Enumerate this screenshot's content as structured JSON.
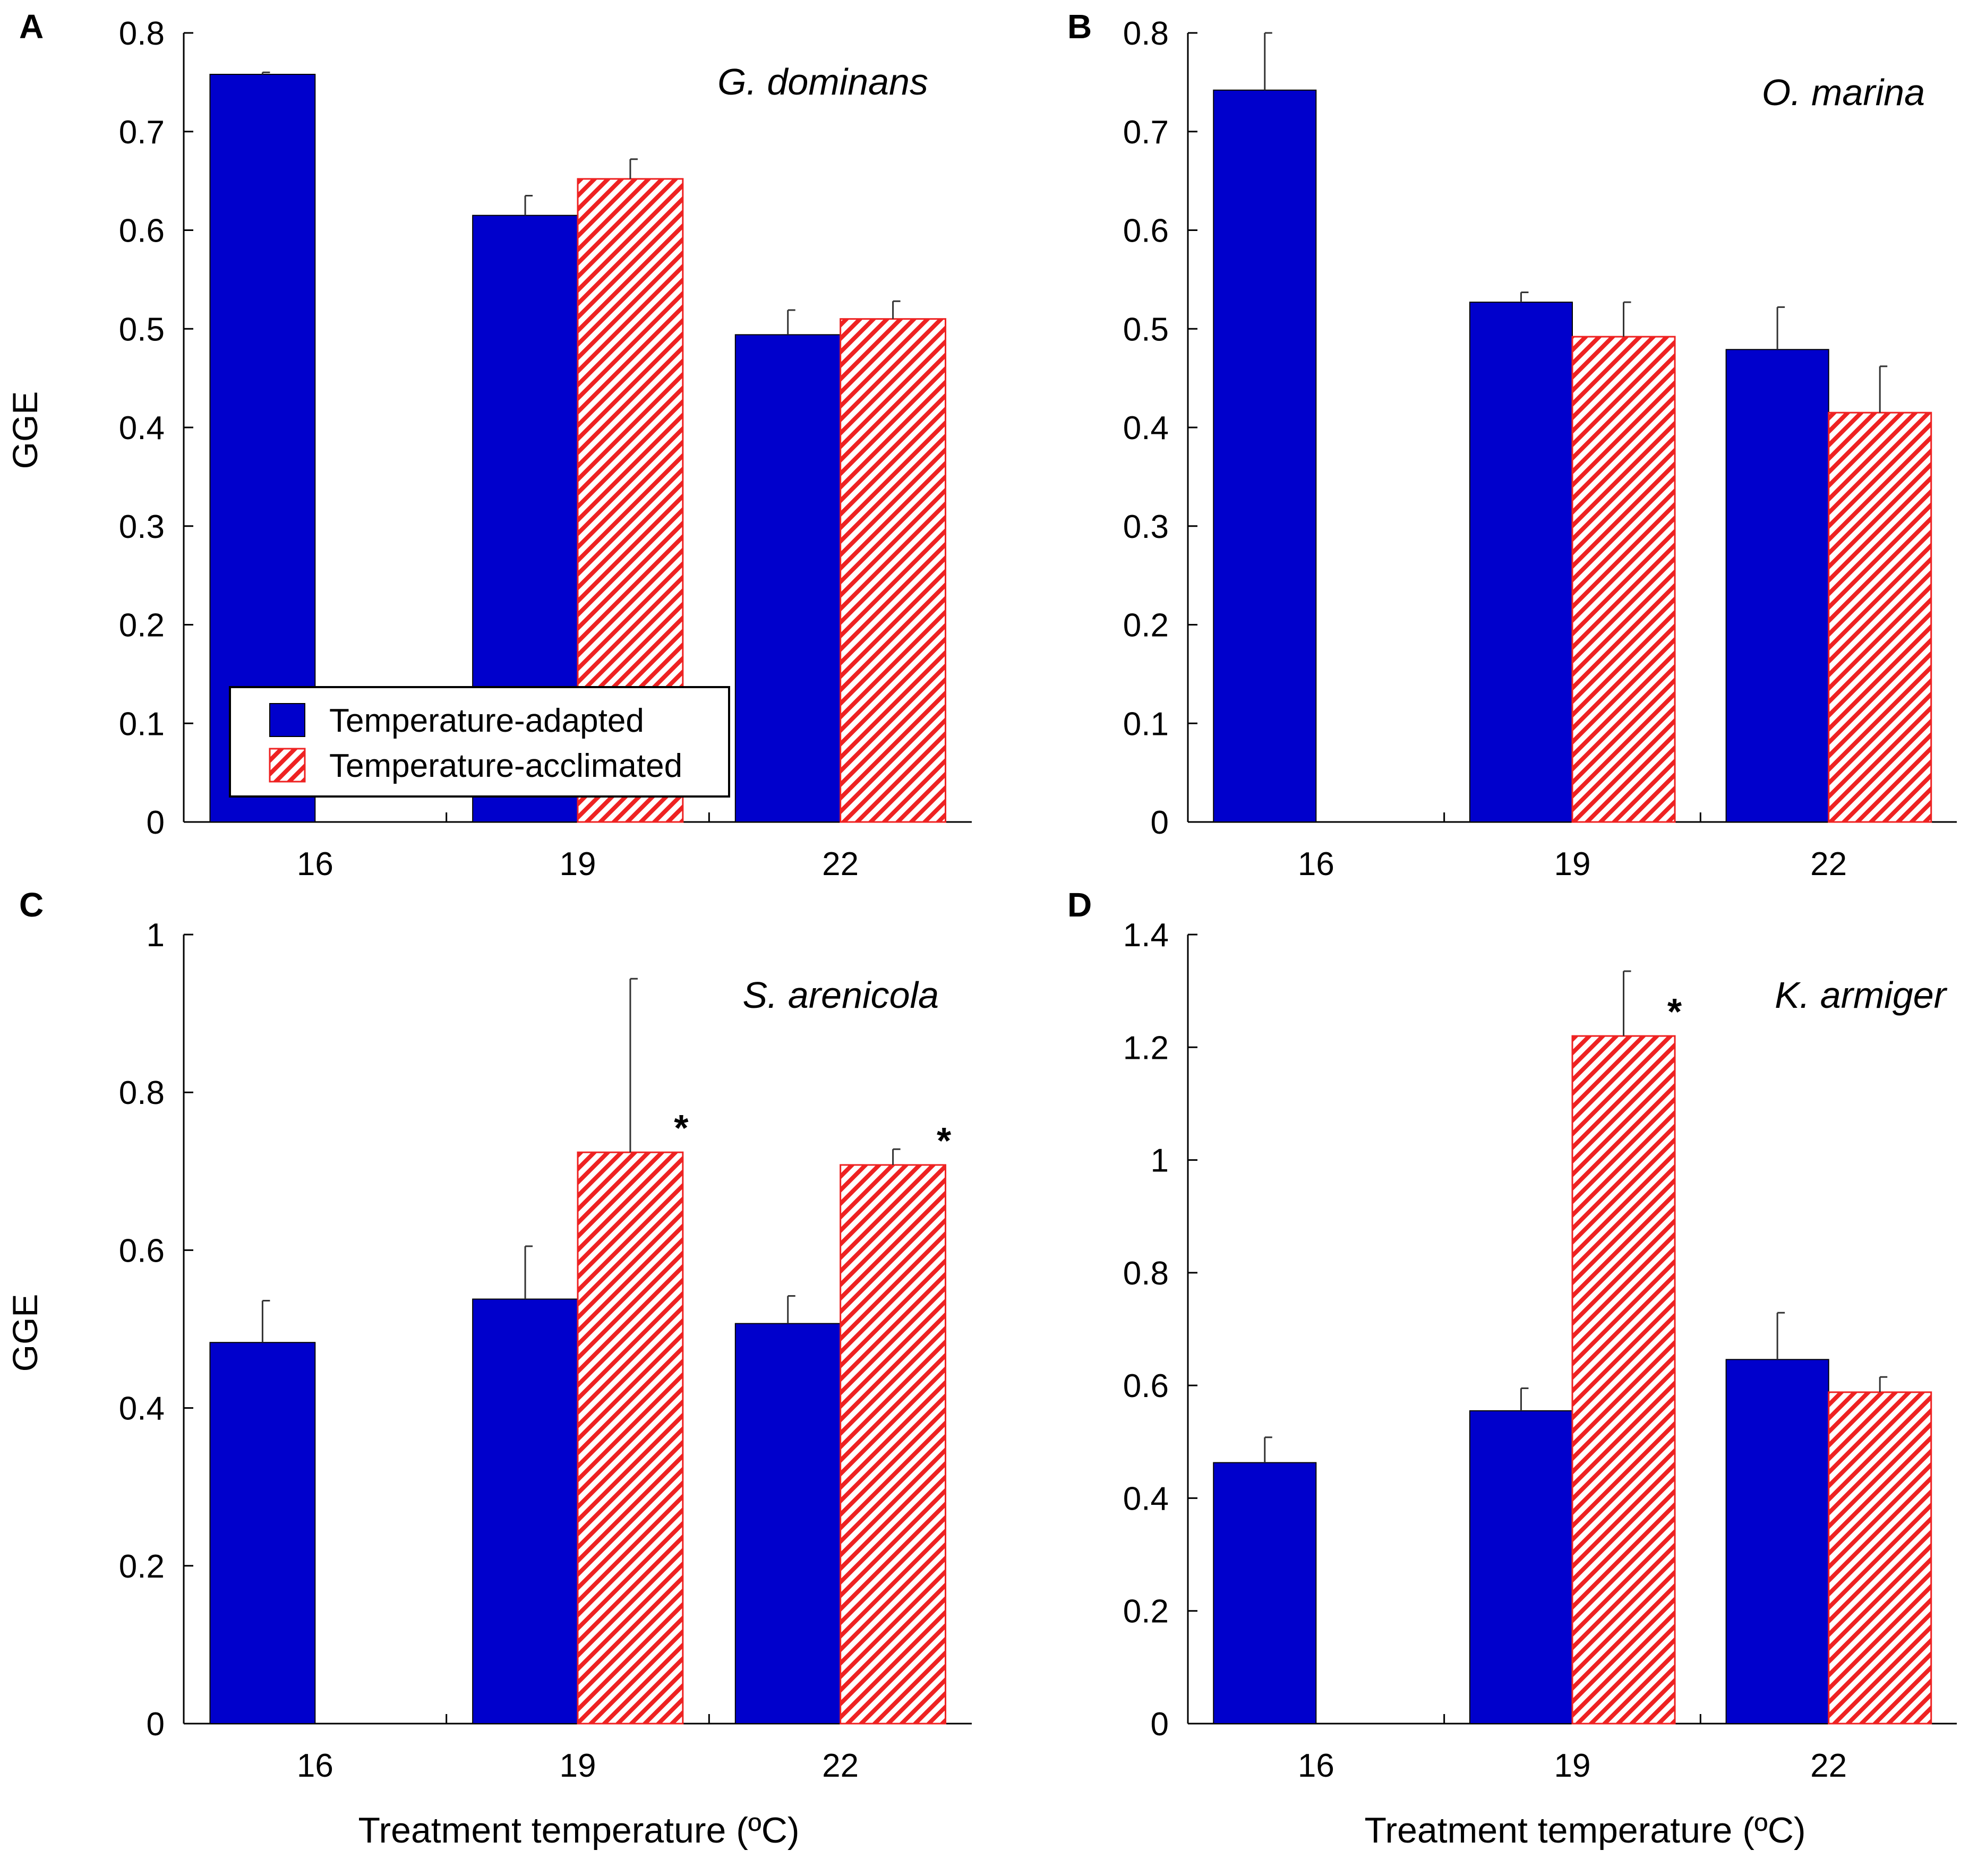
{
  "colors": {
    "adapted": "#0000cc",
    "acclimated_stripe": "#ee2222",
    "axis": "#000000"
  },
  "chart_data": [
    {
      "type": "bar",
      "panel": "A",
      "species": "G. dominans",
      "xlabel": "",
      "ylabel": "GGE",
      "categories": [
        "16",
        "19",
        "22"
      ],
      "ylim": [
        0,
        0.8
      ],
      "yticks": [
        0,
        0.1,
        0.2,
        0.3,
        0.4,
        0.5,
        0.6,
        0.7,
        0.8
      ],
      "ytick_labels": [
        "0",
        "0.1",
        "0.2",
        "0.3",
        "0.4",
        "0.5",
        "0.6",
        "0.7",
        "0.8"
      ],
      "series": [
        {
          "name": "Temperature-adapted",
          "values": [
            0.758,
            0.615,
            0.494
          ],
          "errors": [
            0.002,
            0.02,
            0.025
          ]
        },
        {
          "name": "Temperature-acclimated",
          "values": [
            null,
            0.652,
            0.51
          ],
          "errors": [
            null,
            0.02,
            0.018
          ]
        }
      ],
      "significance": [],
      "legend": {
        "position": "bottom-left",
        "entries": [
          "Temperature-adapted",
          "Temperature-acclimated"
        ]
      }
    },
    {
      "type": "bar",
      "panel": "B",
      "species": "O. marina",
      "xlabel": "",
      "ylabel": "",
      "categories": [
        "16",
        "19",
        "22"
      ],
      "ylim": [
        0,
        0.8
      ],
      "yticks": [
        0,
        0.1,
        0.2,
        0.3,
        0.4,
        0.5,
        0.6,
        0.7,
        0.8
      ],
      "ytick_labels": [
        "0",
        "0.1",
        "0.2",
        "0.3",
        "0.4",
        "0.5",
        "0.6",
        "0.7",
        "0.8"
      ],
      "series": [
        {
          "name": "Temperature-adapted",
          "values": [
            0.742,
            0.527,
            0.479
          ],
          "errors": [
            0.058,
            0.01,
            0.043
          ]
        },
        {
          "name": "Temperature-acclimated",
          "values": [
            null,
            0.492,
            0.415
          ],
          "errors": [
            null,
            0.035,
            0.047
          ]
        }
      ],
      "significance": []
    },
    {
      "type": "bar",
      "panel": "C",
      "species": "S. arenicola",
      "xlabel": "Treatment temperature (ºC)",
      "ylabel": "GGE",
      "categories": [
        "16",
        "19",
        "22"
      ],
      "ylim": [
        0,
        1
      ],
      "yticks": [
        0,
        0.2,
        0.4,
        0.6,
        0.8,
        1
      ],
      "ytick_labels": [
        "0",
        "0.2",
        "0.4",
        "0.6",
        "0.8",
        "1"
      ],
      "series": [
        {
          "name": "Temperature-adapted",
          "values": [
            0.483,
            0.538,
            0.507
          ],
          "errors": [
            0.053,
            0.067,
            0.035
          ]
        },
        {
          "name": "Temperature-acclimated",
          "values": [
            null,
            0.724,
            0.708
          ],
          "errors": [
            null,
            0.22,
            0.02
          ]
        }
      ],
      "significance": [
        {
          "category": "19",
          "series": "Temperature-acclimated",
          "marker": "*"
        },
        {
          "category": "22",
          "series": "Temperature-acclimated",
          "marker": "*"
        }
      ]
    },
    {
      "type": "bar",
      "panel": "D",
      "species": "K. armiger",
      "xlabel": "Treatment temperature (ºC)",
      "ylabel": "",
      "categories": [
        "16",
        "19",
        "22"
      ],
      "ylim": [
        0,
        1.4
      ],
      "yticks": [
        0,
        0.2,
        0.4,
        0.6,
        0.8,
        1,
        1.2,
        1.4
      ],
      "ytick_labels": [
        "0",
        "0.2",
        "0.4",
        "0.6",
        "0.8",
        "1",
        "1.2",
        "1.4"
      ],
      "series": [
        {
          "name": "Temperature-adapted",
          "values": [
            0.463,
            0.555,
            0.646
          ],
          "errors": [
            0.045,
            0.04,
            0.083
          ]
        },
        {
          "name": "Temperature-acclimated",
          "values": [
            null,
            1.22,
            0.588
          ],
          "errors": [
            null,
            0.115,
            0.027
          ]
        }
      ],
      "significance": [
        {
          "category": "19",
          "series": "Temperature-acclimated",
          "marker": "*"
        }
      ]
    }
  ],
  "legend": {
    "adapted_label": "Temperature-adapted",
    "acclimated_label": "Temperature-acclimated"
  }
}
